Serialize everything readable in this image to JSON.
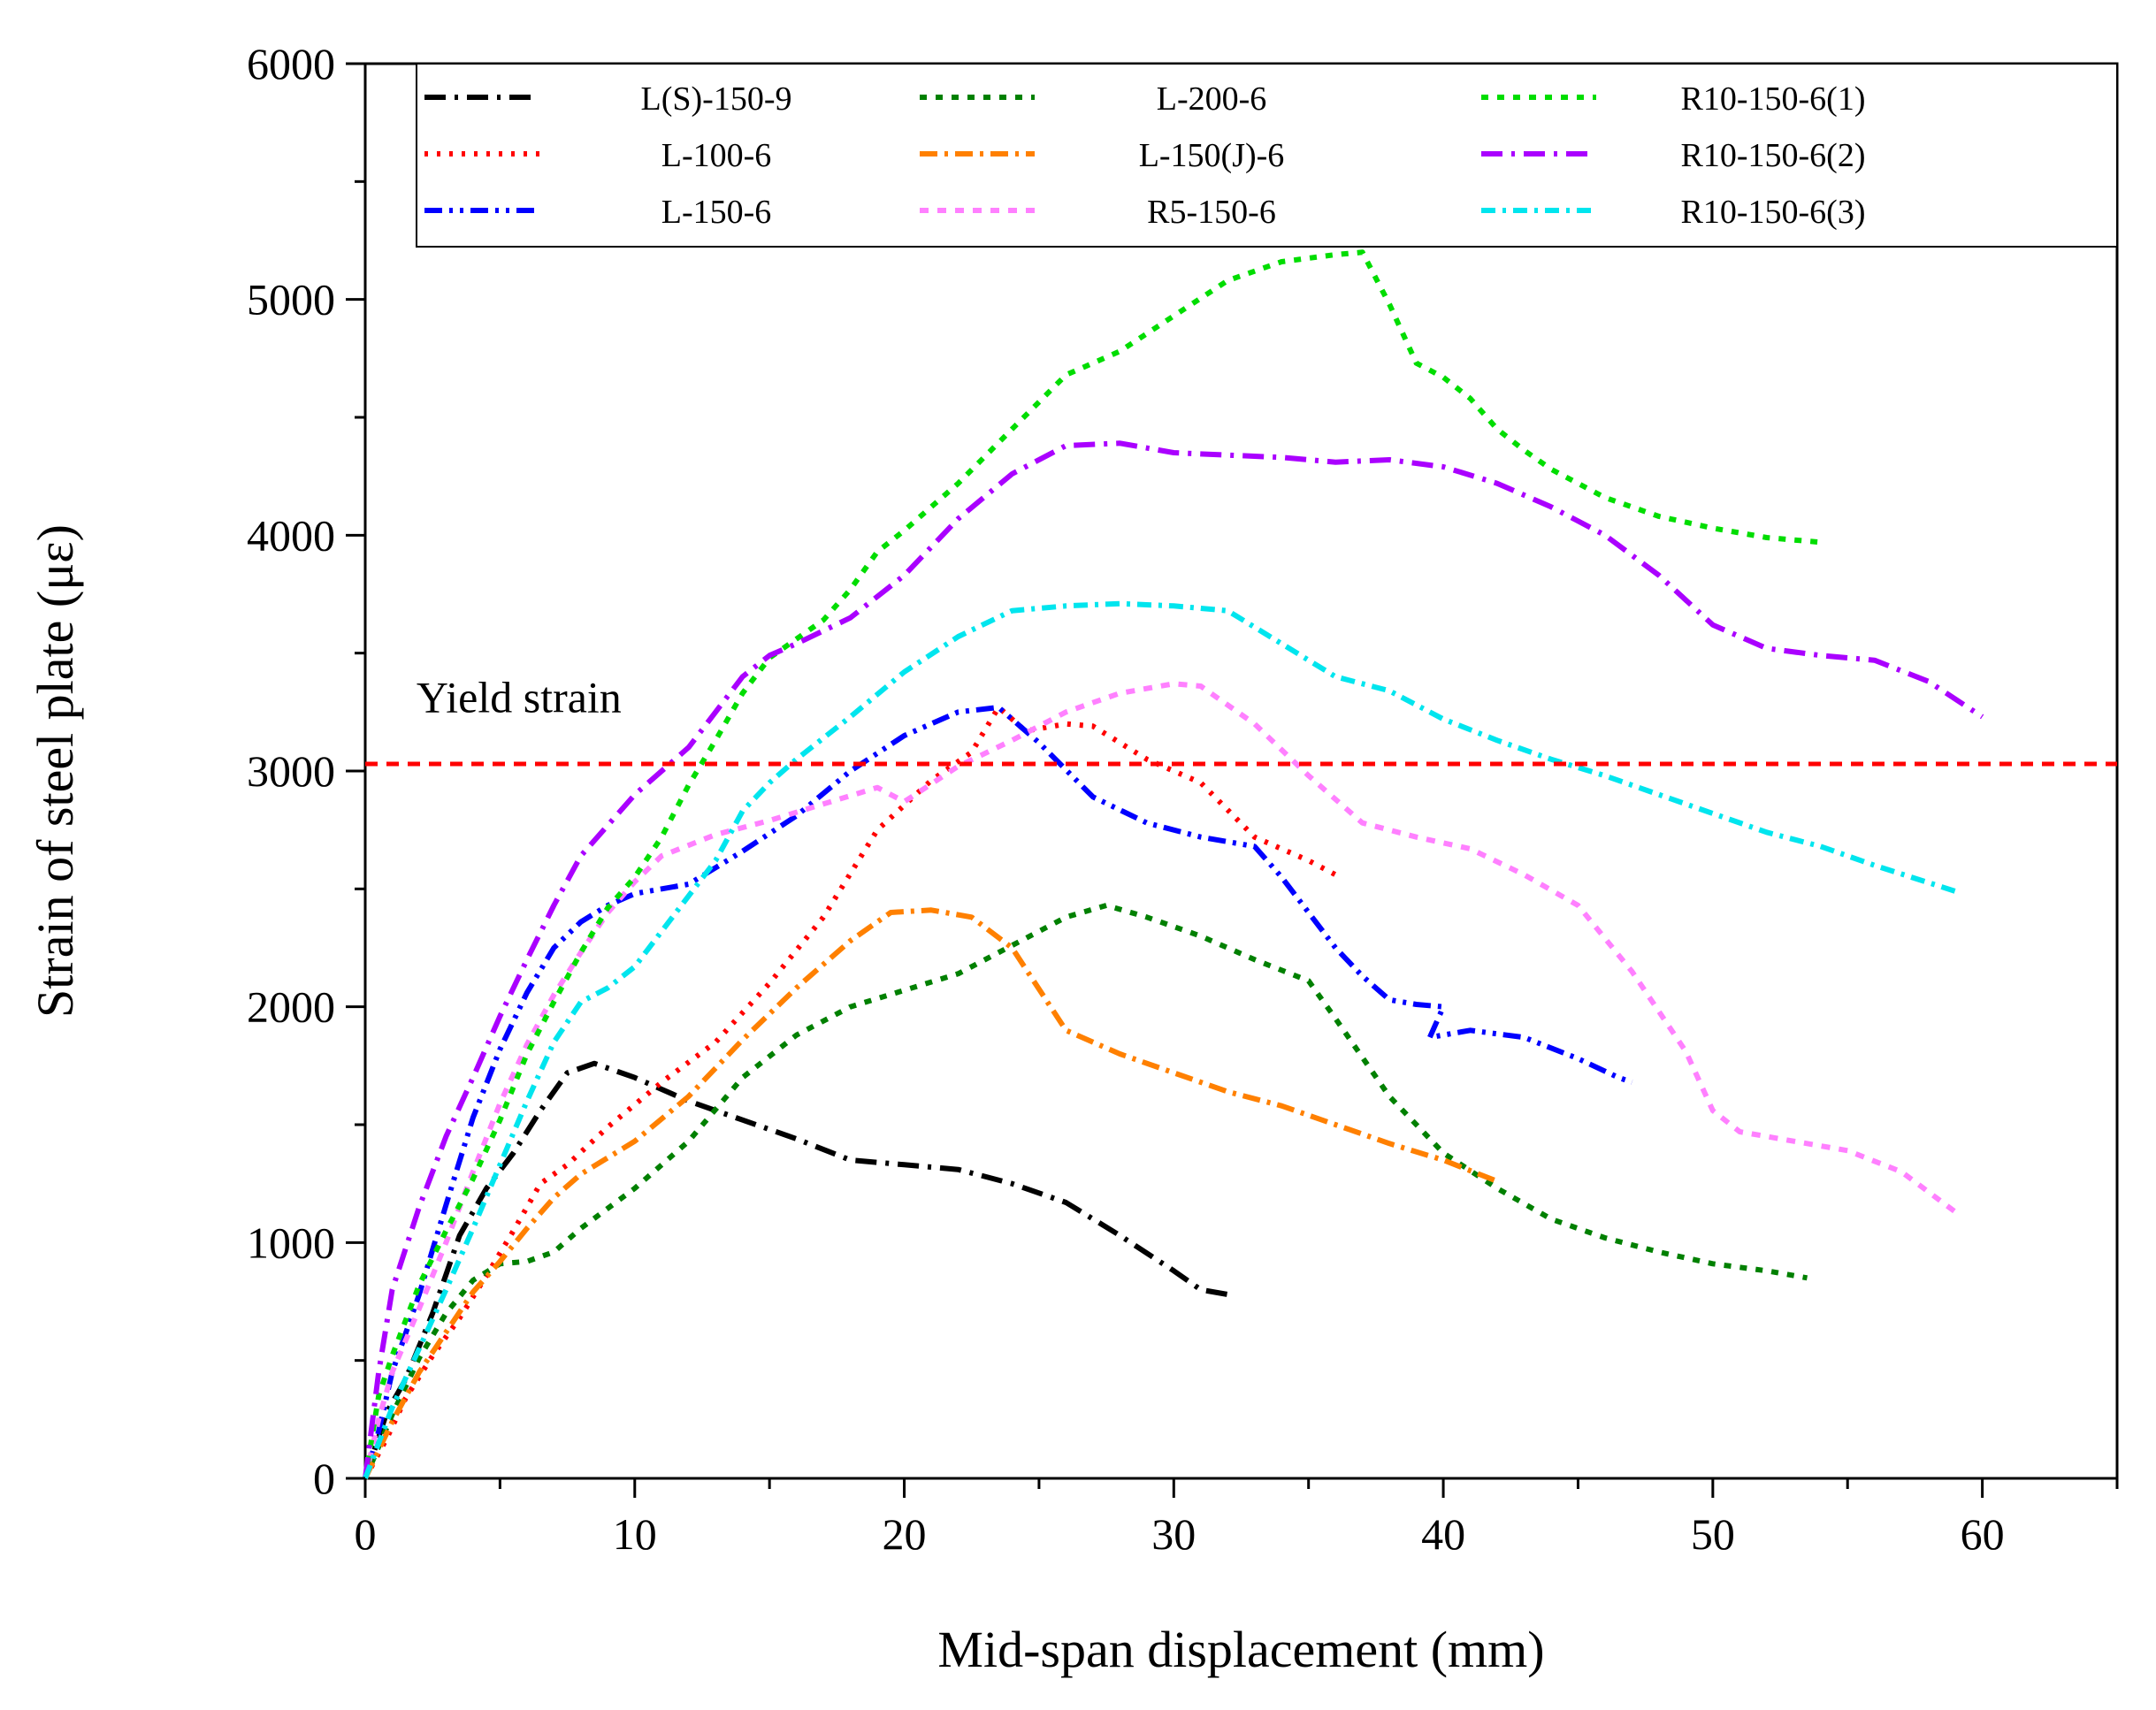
{
  "chart_data": {
    "type": "line",
    "title": "",
    "xlabel": "Mid-span displacement (mm)",
    "ylabel": "Strain of steel plate (με)",
    "xlim": [
      0,
      65
    ],
    "ylim": [
      0,
      6000
    ],
    "xticks": [
      0,
      10,
      20,
      30,
      40,
      50,
      60
    ],
    "yticks": [
      0,
      1000,
      2000,
      3000,
      4000,
      5000,
      6000
    ],
    "x_minor_step": 5,
    "y_minor_step": 500,
    "grid": false,
    "legend_position": "top",
    "annotations": [
      {
        "text": "Yield strain",
        "x": 1.9,
        "y": 3250
      }
    ],
    "reference_line": {
      "name": "yield-strain-line",
      "y": 3030,
      "color": "#ff0000",
      "dash": "14 10"
    },
    "series": [
      {
        "name": "L(S)-150-9",
        "color": "#000000",
        "dash": "24 10 4 10",
        "x": [
          0,
          0.8,
          1.5,
          2.5,
          3.5,
          4.5,
          5.5,
          6.5,
          7.5,
          8.5,
          10,
          12,
          14,
          16,
          18,
          20,
          22,
          24,
          26,
          28,
          30,
          31,
          32
        ],
        "y": [
          0,
          280,
          420,
          700,
          1030,
          1230,
          1380,
          1560,
          1720,
          1760,
          1700,
          1600,
          1520,
          1440,
          1350,
          1330,
          1310,
          1250,
          1170,
          1030,
          880,
          800,
          780
        ]
      },
      {
        "name": "L-100-6",
        "color": "#ff0000",
        "dash": "4 10",
        "x": [
          0,
          0.8,
          1.5,
          2.5,
          3.5,
          4.5,
          5.5,
          6.5,
          7.5,
          9,
          11,
          13,
          15,
          17,
          19,
          21,
          22.5,
          23.5,
          24.5,
          26,
          27,
          29,
          31,
          33,
          35,
          36
        ],
        "y": [
          0,
          170,
          340,
          520,
          680,
          860,
          1050,
          1250,
          1330,
          1490,
          1680,
          1850,
          2100,
          2380,
          2750,
          2960,
          3080,
          3270,
          3170,
          3200,
          3190,
          3050,
          2950,
          2720,
          2620,
          2560
        ]
      },
      {
        "name": "L-150-6",
        "color": "#0000ff",
        "dash": "20 8 4 8 4 8",
        "x": [
          0,
          0.5,
          1,
          2,
          3,
          4,
          5,
          6,
          7,
          8,
          9,
          10,
          12,
          14,
          16,
          18,
          20,
          22,
          23.5,
          25,
          27,
          29,
          31,
          33,
          34,
          35,
          36,
          37,
          38,
          39,
          40,
          39.5,
          41,
          43,
          45,
          46.5,
          47
        ],
        "y": [
          0,
          200,
          450,
          780,
          1160,
          1530,
          1820,
          2060,
          2250,
          2360,
          2430,
          2480,
          2520,
          2660,
          2810,
          3000,
          3150,
          3250,
          3270,
          3120,
          2890,
          2780,
          2720,
          2680,
          2550,
          2400,
          2250,
          2130,
          2030,
          2010,
          2000,
          1870,
          1900,
          1870,
          1780,
          1700,
          1680
        ]
      },
      {
        "name": "L-200-6",
        "color": "#008000",
        "dash": "8 10",
        "x": [
          0,
          1,
          2,
          3,
          4,
          5,
          6,
          7,
          8,
          10,
          12,
          14,
          16,
          18,
          20,
          22,
          24,
          26,
          27.5,
          29,
          31,
          33,
          35,
          36,
          38,
          40,
          42,
          44,
          46,
          48,
          50,
          52,
          53.5
        ],
        "y": [
          0,
          270,
          510,
          700,
          840,
          910,
          920,
          960,
          1060,
          1230,
          1430,
          1700,
          1880,
          2000,
          2070,
          2140,
          2260,
          2380,
          2430,
          2380,
          2300,
          2200,
          2110,
          1950,
          1620,
          1380,
          1230,
          1100,
          1020,
          960,
          910,
          880,
          850
        ]
      },
      {
        "name": "L-150(J)-6",
        "color": "#ff8000",
        "dash": "20 8 4 8",
        "x": [
          0,
          1,
          2,
          3,
          4,
          5,
          6,
          7,
          8,
          10,
          12,
          14,
          16,
          18,
          19.5,
          21,
          22.5,
          24,
          26,
          28,
          30,
          32,
          34,
          36,
          38,
          40,
          42
        ],
        "y": [
          0,
          240,
          450,
          620,
          790,
          920,
          1060,
          1190,
          1290,
          1430,
          1620,
          1860,
          2080,
          2280,
          2400,
          2410,
          2380,
          2250,
          1900,
          1800,
          1720,
          1640,
          1580,
          1500,
          1420,
          1350,
          1260
        ]
      },
      {
        "name": "R5-150-6",
        "color": "#ff80ff",
        "dash": "10 10",
        "x": [
          0,
          0.5,
          1,
          2,
          3,
          4,
          5,
          6,
          7,
          8,
          9,
          10,
          11,
          13,
          15,
          17,
          19,
          20,
          22,
          24,
          26,
          28,
          30,
          31,
          33,
          35,
          37,
          39,
          41,
          43,
          45,
          47,
          49,
          50,
          51,
          53,
          55,
          57,
          59
        ],
        "y": [
          0,
          250,
          450,
          720,
          1000,
          1300,
          1590,
          1840,
          2050,
          2230,
          2400,
          2530,
          2640,
          2730,
          2790,
          2860,
          2930,
          2870,
          3020,
          3130,
          3250,
          3330,
          3370,
          3360,
          3200,
          2980,
          2780,
          2720,
          2670,
          2560,
          2430,
          2150,
          1810,
          1560,
          1470,
          1430,
          1390,
          1300,
          1130
        ]
      },
      {
        "name": "R10-150-6(1)",
        "color": "#00dd00",
        "dash": "8 10",
        "x": [
          0,
          0.5,
          1,
          2,
          3,
          4,
          5,
          6,
          7,
          8,
          9,
          10,
          11,
          12,
          13,
          14,
          15,
          16,
          17,
          18,
          19,
          20,
          22,
          24,
          26,
          28,
          30,
          32,
          34,
          36,
          37,
          38,
          39,
          40,
          41,
          42,
          43,
          44,
          46,
          48,
          50,
          52,
          54
        ],
        "y": [
          0,
          350,
          520,
          820,
          1050,
          1270,
          1520,
          1800,
          2020,
          2230,
          2420,
          2550,
          2720,
          2940,
          3130,
          3330,
          3480,
          3560,
          3640,
          3770,
          3930,
          4020,
          4220,
          4450,
          4680,
          4780,
          4930,
          5080,
          5160,
          5190,
          5200,
          4980,
          4730,
          4670,
          4580,
          4450,
          4360,
          4280,
          4160,
          4080,
          4030,
          3990,
          3970
        ]
      },
      {
        "name": "R10-150-6(2)",
        "color": "#aa00ff",
        "dash": "24 10 4 10",
        "x": [
          0,
          0.5,
          1,
          2,
          3,
          4,
          5,
          6,
          7,
          8,
          10,
          12,
          13,
          14,
          15,
          16,
          18,
          20,
          22,
          24,
          26,
          28,
          30,
          32,
          34,
          36,
          38,
          40,
          42,
          44,
          46,
          48,
          50,
          52,
          54,
          56,
          58,
          60
        ],
        "y": [
          0,
          450,
          800,
          1150,
          1450,
          1700,
          1960,
          2200,
          2430,
          2640,
          2900,
          3100,
          3250,
          3400,
          3490,
          3540,
          3650,
          3830,
          4070,
          4260,
          4380,
          4390,
          4350,
          4340,
          4330,
          4310,
          4320,
          4290,
          4220,
          4120,
          4000,
          3830,
          3620,
          3520,
          3490,
          3470,
          3380,
          3230
        ]
      },
      {
        "name": "R10-150-6(3)",
        "color": "#00e5ee",
        "dash": "16 8 4 8",
        "x": [
          0,
          0.5,
          1,
          2,
          3,
          4,
          5,
          6,
          7,
          8,
          9,
          10,
          11,
          12,
          13,
          14,
          15,
          16,
          18,
          20,
          22,
          24,
          26,
          28,
          30,
          32,
          34,
          36,
          38,
          40,
          42,
          44,
          46,
          48,
          50,
          52,
          54,
          56,
          59
        ],
        "y": [
          0,
          150,
          300,
          550,
          800,
          1060,
          1330,
          1600,
          1850,
          2020,
          2080,
          2170,
          2320,
          2470,
          2620,
          2830,
          2950,
          3050,
          3230,
          3420,
          3570,
          3680,
          3700,
          3710,
          3700,
          3680,
          3540,
          3400,
          3340,
          3220,
          3130,
          3050,
          2980,
          2900,
          2820,
          2740,
          2680,
          2600,
          2490
        ]
      }
    ]
  }
}
